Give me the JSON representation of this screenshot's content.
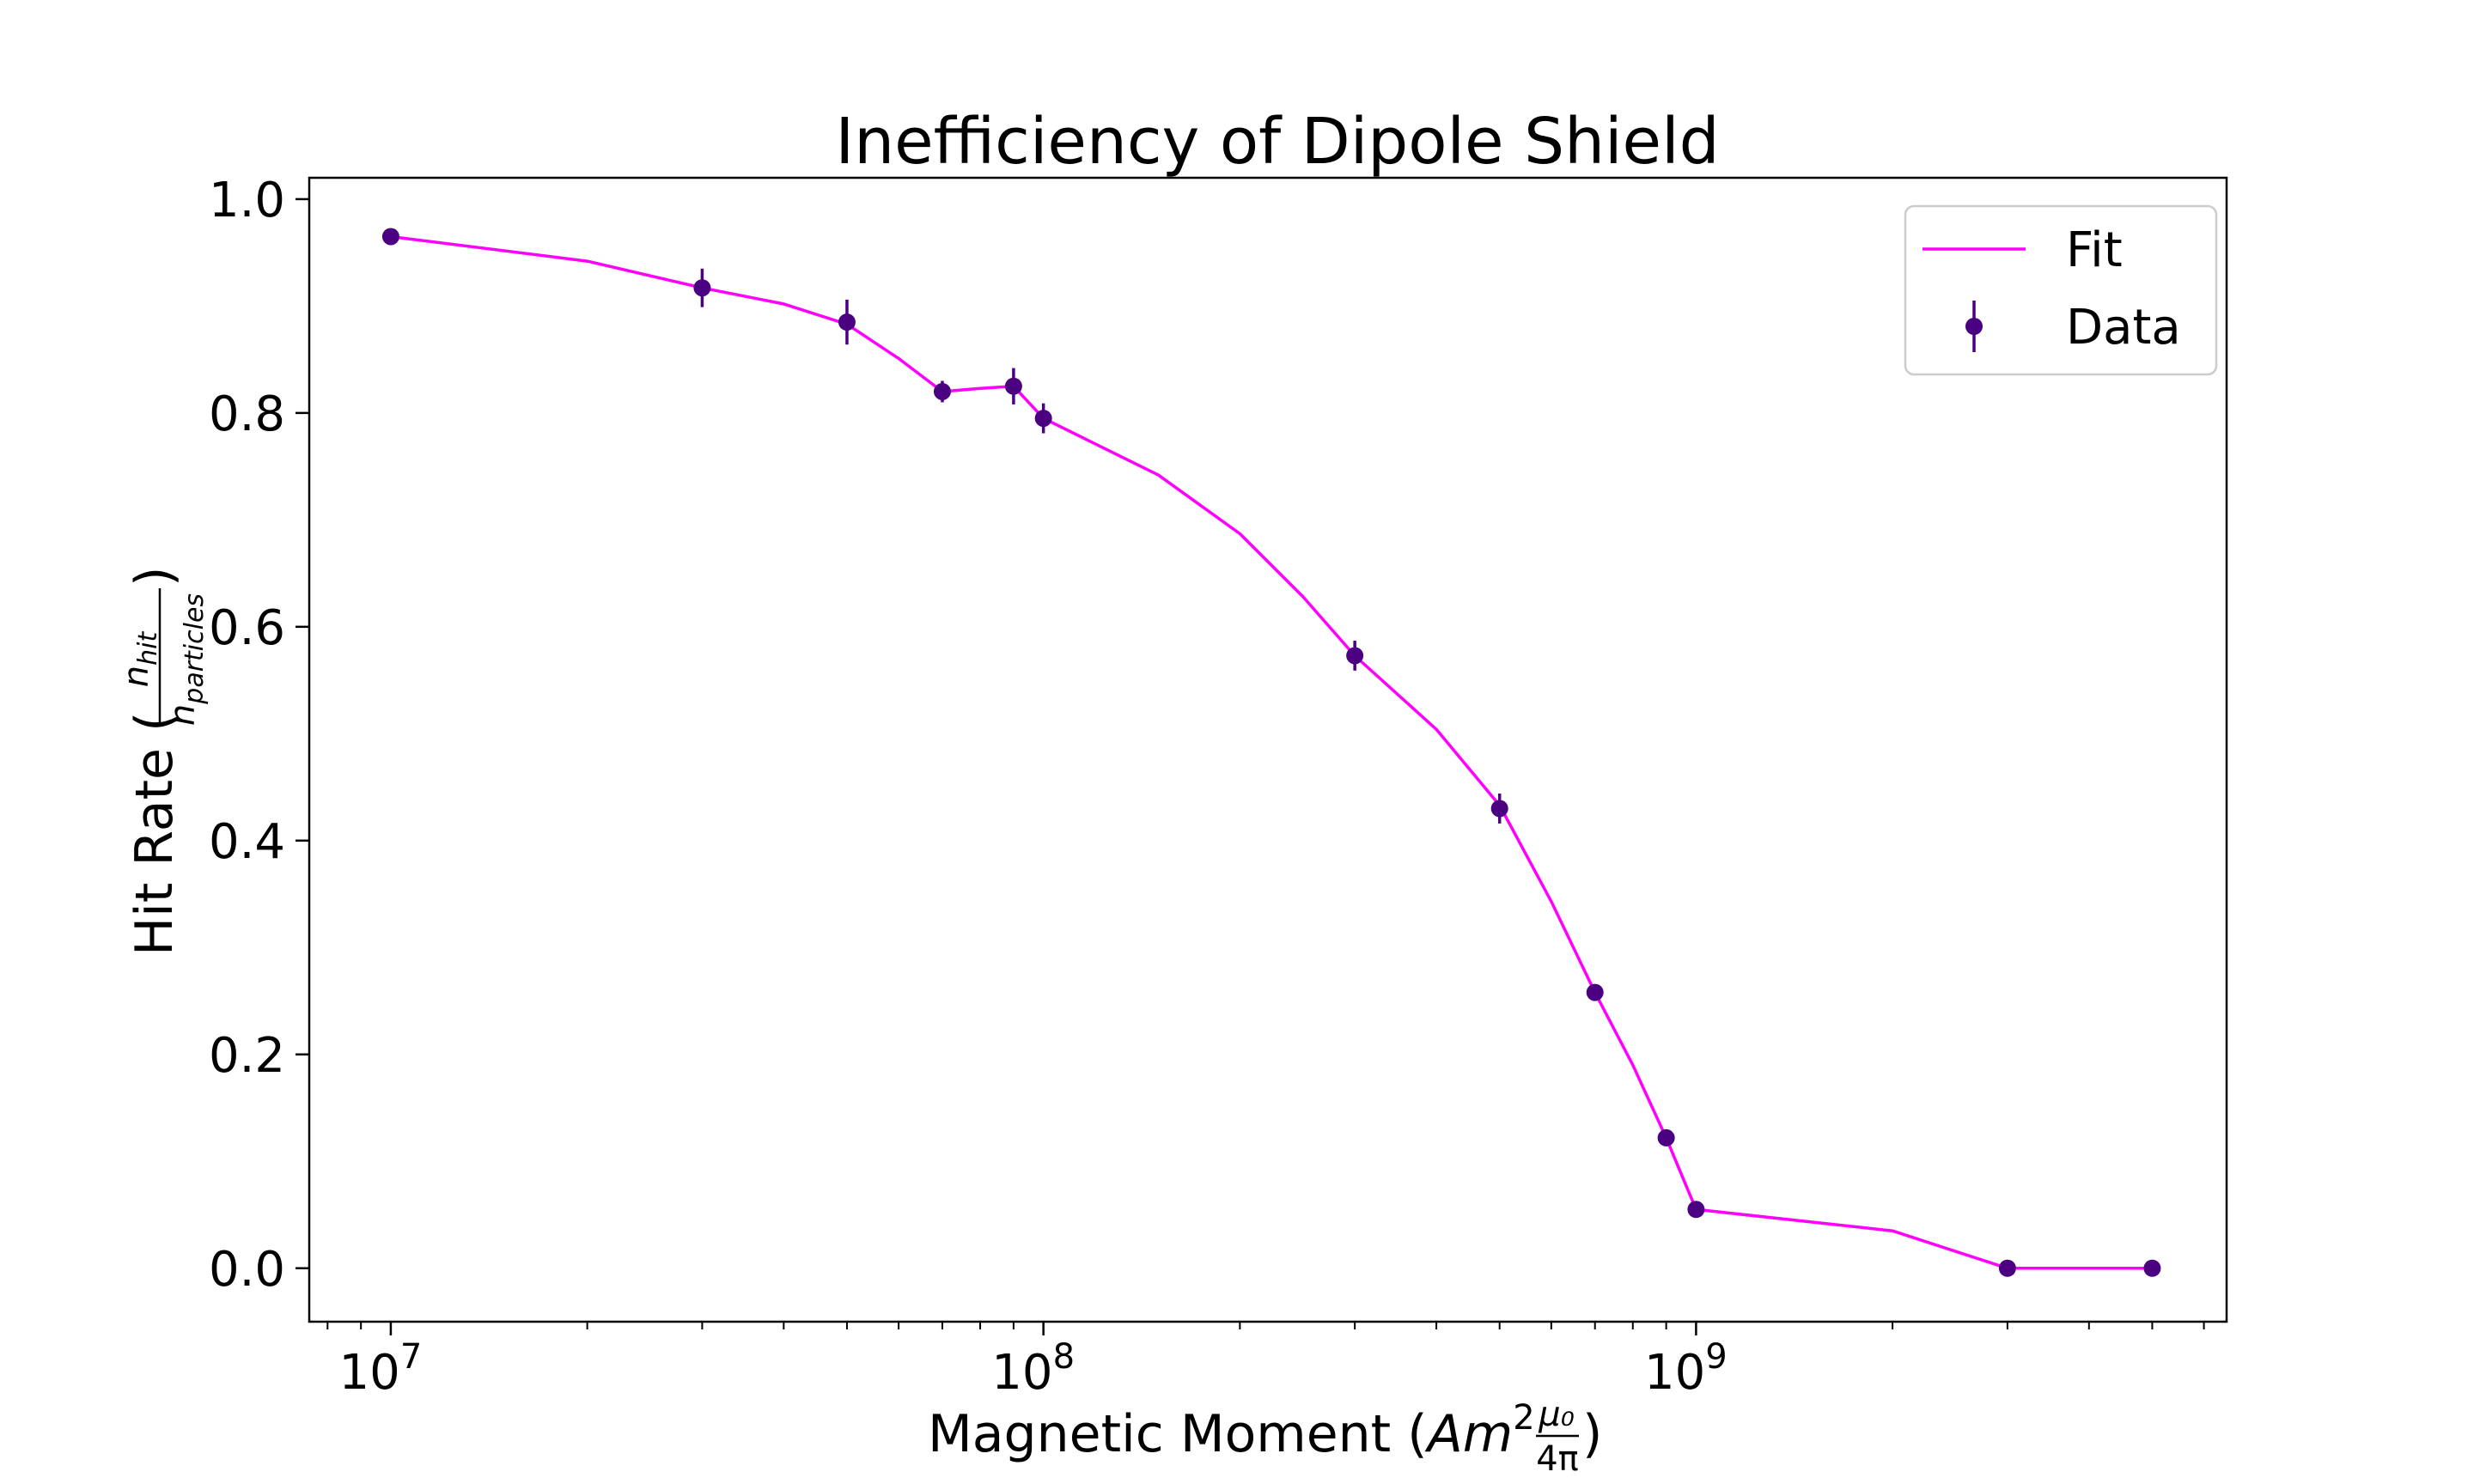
{
  "chart_data": {
    "type": "line",
    "title": "Inefficiency of Dipole Shield",
    "xlabel": {
      "text": "Magnetic Moment (",
      "math_main": "Am",
      "math_sup": "2",
      "frac_num": "μ₀",
      "frac_den": "4π",
      "close": ")"
    },
    "ylabel": {
      "text": "Hit Rate (",
      "frac_num": "n",
      "frac_num_sub": "hit",
      "frac_den": "n",
      "frac_den_sub": "particles",
      "close": ")"
    },
    "xscale": "log",
    "xlim": [
      7500000.0,
      6500000000.0
    ],
    "ylim": [
      -0.05,
      1.02
    ],
    "x_ticks": [
      {
        "value": 10000000.0,
        "base": "10",
        "exp": "7"
      },
      {
        "value": 100000000.0,
        "base": "10",
        "exp": "8"
      },
      {
        "value": 1000000000.0,
        "base": "10",
        "exp": "9"
      }
    ],
    "y_ticks": [
      {
        "value": 0.0,
        "label": "0.0"
      },
      {
        "value": 0.2,
        "label": "0.2"
      },
      {
        "value": 0.4,
        "label": "0.4"
      },
      {
        "value": 0.6,
        "label": "0.6"
      },
      {
        "value": 0.8,
        "label": "0.8"
      },
      {
        "value": 1.0,
        "label": "1.0"
      }
    ],
    "grid": false,
    "legend_position": "top-right",
    "series": [
      {
        "name": "Fit",
        "kind": "line",
        "color": "#ff00ff",
        "x": [
          10000000.0,
          20000000.0,
          30000000.0,
          40000000.0,
          50000000.0,
          60000000.0,
          70000000.0,
          80000000.0,
          90000000.0,
          100000000.0,
          150000000.0,
          200000000.0,
          250000000.0,
          300000000.0,
          400000000.0,
          500000000.0,
          600000000.0,
          700000000.0,
          800000000.0,
          900000000.0,
          1000000000.0,
          2000000000.0,
          3000000000.0,
          5000000000.0
        ],
        "y": [
          0.965,
          0.942,
          0.917,
          0.902,
          0.883,
          0.851,
          0.82,
          0.823,
          0.825,
          0.795,
          0.742,
          0.687,
          0.628,
          0.573,
          0.504,
          0.433,
          0.343,
          0.258,
          0.19,
          0.122,
          0.055,
          0.035,
          0.0,
          0.0
        ]
      },
      {
        "name": "Data",
        "kind": "errorbar",
        "color": "#4b0082",
        "x": [
          10000000.0,
          30000000.0,
          50000000.0,
          70000000.0,
          90000000.0,
          100000000.0,
          300000000.0,
          500000000.0,
          700000000.0,
          900000000.0,
          1000000000.0,
          3000000000.0,
          5000000000.0
        ],
        "y": [
          0.965,
          0.917,
          0.885,
          0.82,
          0.825,
          0.795,
          0.573,
          0.43,
          0.258,
          0.122,
          0.055,
          0.0,
          0.0
        ],
        "yerr": [
          0.007,
          0.018,
          0.021,
          0.01,
          0.017,
          0.014,
          0.014,
          0.014,
          0.005,
          0.004,
          0.004,
          0.002,
          0.002
        ]
      }
    ]
  }
}
